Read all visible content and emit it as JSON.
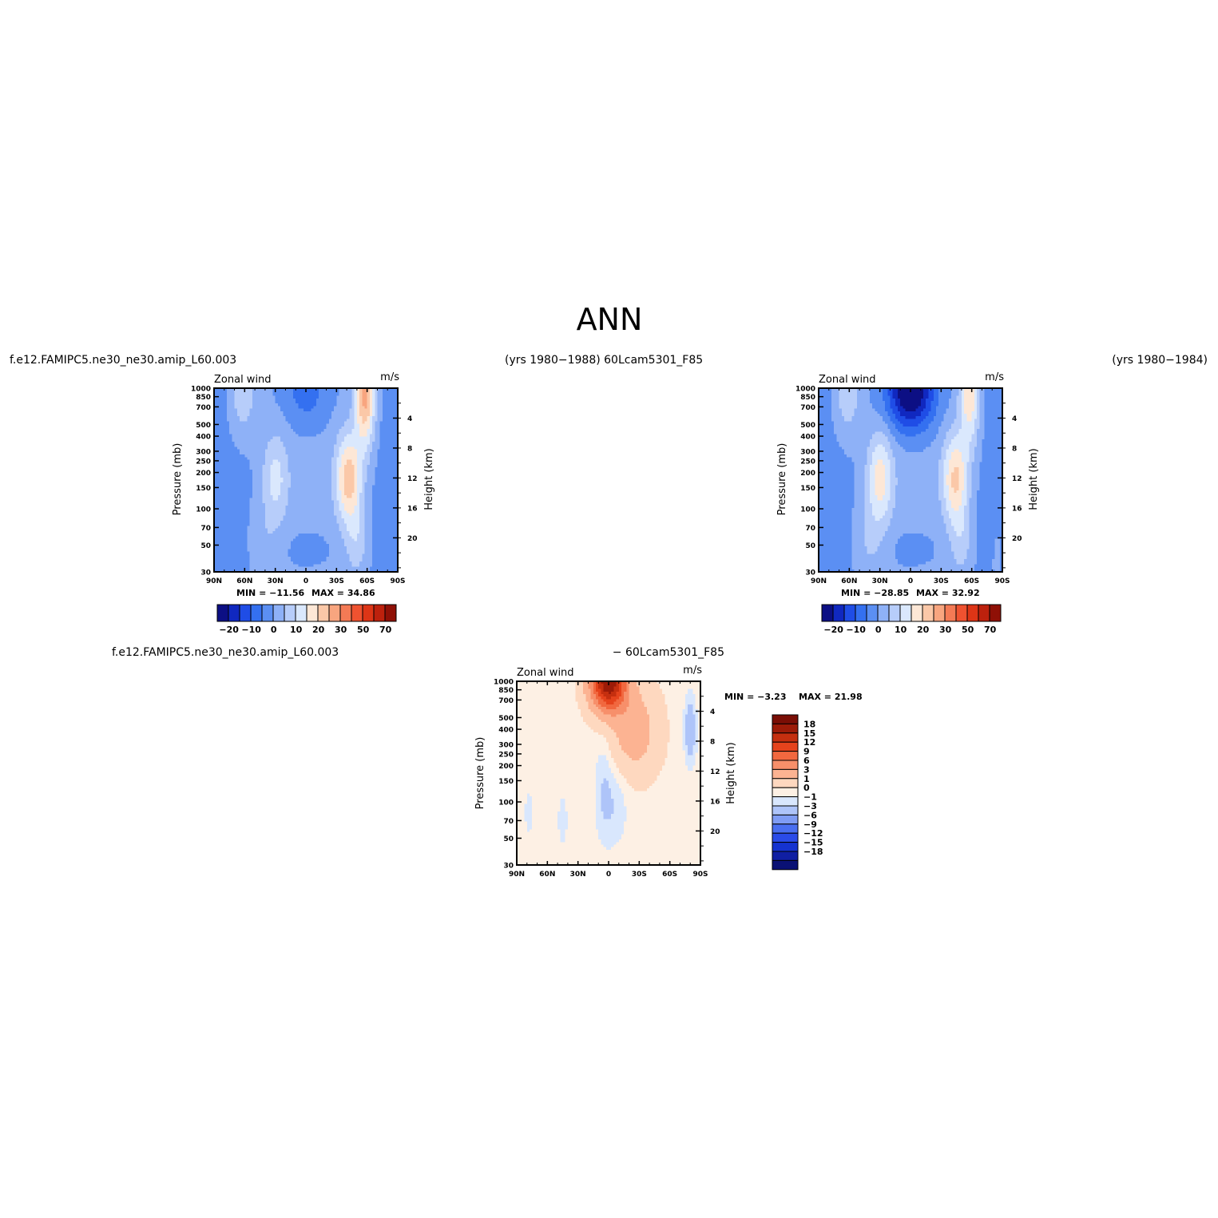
{
  "figure": {
    "title": "ANN",
    "header_left": "f.e12.FAMIPC5.ne30_ne30.amip_L60.003",
    "header_mid": "(yrs 1980−1988)   60Lcam5301_F85",
    "header_right": "(yrs 1980−1984)",
    "diff_header_left": "f.e12.FAMIPC5.ne30_ne30.amip_L60.003",
    "diff_header_right": "− 60Lcam5301_F85"
  },
  "colors": {
    "full_palette": [
      "#0c0f84",
      "#1028c0",
      "#1f4de6",
      "#3470f0",
      "#5b8ff3",
      "#8eb1f7",
      "#b7cdfa",
      "#dae8fd",
      "#fde7d6",
      "#fbc8a8",
      "#f8a57f",
      "#f47a55",
      "#ef5230",
      "#dd3516",
      "#bd210d",
      "#8f1006"
    ],
    "diff_palette": [
      "#0a1175",
      "#101fa3",
      "#1533d0",
      "#2a4be8",
      "#4a6ff0",
      "#7f9cf4",
      "#aec4f9",
      "#d9e7fd",
      "#fdf0e4",
      "#fed8bf",
      "#fcb392",
      "#f78f6a",
      "#f1683f",
      "#e5431c",
      "#c52f0f",
      "#9c1b08",
      "#7a0e05"
    ]
  },
  "chart_data": [
    {
      "type": "heatmap",
      "panel": "model-1",
      "label_left": "Zonal wind",
      "label_right": "m/s",
      "xlabel": "",
      "ylabel": "Pressure (mb)",
      "ylabel_right": "Height (km)",
      "x_ticks": [
        "90N",
        "60N",
        "30N",
        "0",
        "30S",
        "60S",
        "90S"
      ],
      "x_range": [
        90,
        -90
      ],
      "y_range_mb": [
        1000,
        30
      ],
      "y_scale": "log",
      "y_ticks": [
        "30",
        "50",
        "70",
        "100",
        "150",
        "200",
        "250",
        "300",
        "400",
        "500",
        "700",
        "850",
        "1000"
      ],
      "y_ticks_right": [
        "20",
        "16",
        "12",
        "8",
        "4"
      ],
      "min_label": "MIN =  −11.56",
      "max_label": "MAX =   34.86",
      "min": -11.56,
      "max": 34.86,
      "colorbar": {
        "orientation": "horizontal",
        "labels": [
          "−20",
          "−10",
          "0",
          "10",
          "20",
          "30",
          "50",
          "70"
        ]
      },
      "field": {
        "jet_n": 11,
        "jet_s": 23,
        "jet_s_lat": -42,
        "strat_e": -9,
        "strat_w": 28,
        "polar_sw": 2
      }
    },
    {
      "type": "heatmap",
      "panel": "model-2",
      "label_left": "Zonal wind",
      "label_right": "m/s",
      "xlabel": "",
      "ylabel": "Pressure (mb)",
      "ylabel_right": "Height (km)",
      "x_ticks": [
        "90N",
        "60N",
        "30N",
        "0",
        "30S",
        "60S",
        "90S"
      ],
      "x_range": [
        90,
        -90
      ],
      "y_range_mb": [
        1000,
        30
      ],
      "y_scale": "log",
      "y_ticks": [
        "30",
        "50",
        "70",
        "100",
        "150",
        "200",
        "250",
        "300",
        "400",
        "500",
        "700",
        "850",
        "1000"
      ],
      "y_ticks_right": [
        "20",
        "16",
        "12",
        "8",
        "4"
      ],
      "min_label": "MIN =  −28.85",
      "max_label": "MAX =   32.92",
      "min": -28.85,
      "max": 32.92,
      "colorbar": {
        "orientation": "horizontal",
        "labels": [
          "−20",
          "−10",
          "0",
          "10",
          "20",
          "30",
          "50",
          "70"
        ]
      },
      "field": {
        "jet_n": 17,
        "jet_s": 21,
        "jet_s_lat": -44,
        "strat_e": -29,
        "strat_w": 20,
        "polar_sw": 3
      }
    },
    {
      "type": "heatmap",
      "panel": "difference",
      "label_left": "Zonal wind",
      "label_right": "m/s",
      "xlabel": "",
      "ylabel": "Pressure (mb)",
      "ylabel_right": "Height (km)",
      "x_ticks": [
        "90N",
        "60N",
        "30N",
        "0",
        "30S",
        "60S",
        "90S"
      ],
      "x_range": [
        90,
        -90
      ],
      "y_range_mb": [
        1000,
        30
      ],
      "y_scale": "log",
      "y_ticks": [
        "30",
        "50",
        "70",
        "100",
        "150",
        "200",
        "250",
        "300",
        "400",
        "500",
        "700",
        "850",
        "1000"
      ],
      "y_ticks_right": [
        "20",
        "16",
        "12",
        "8",
        "4"
      ],
      "min_label": "MIN =   −3.23",
      "max_label": "MAX =   21.98",
      "min": -3.23,
      "max": 21.98,
      "colorbar": {
        "orientation": "vertical",
        "labels": [
          "18",
          "15",
          "12",
          "9",
          "6",
          "3",
          "1",
          "0",
          "−1",
          "−3",
          "−6",
          "−9",
          "−12",
          "−15",
          "−18"
        ]
      }
    }
  ]
}
